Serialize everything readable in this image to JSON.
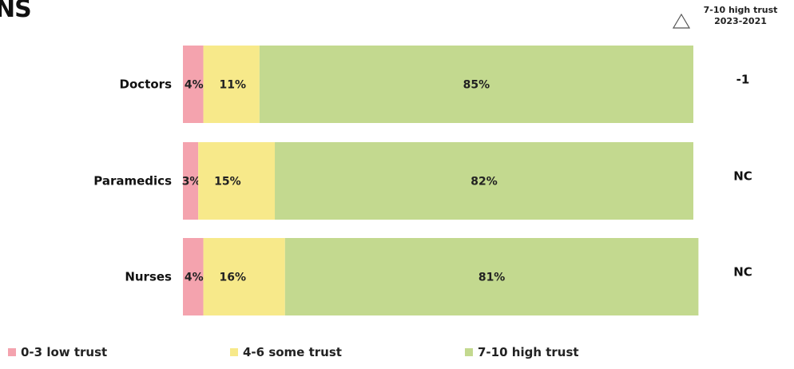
{
  "title_fragment": "NS",
  "delta_header": {
    "line1": "7-10 high trust",
    "line2": "2023-2021",
    "icon": "triangle-outline-icon"
  },
  "colors": {
    "low": "#f4a3ae",
    "some": "#f7e98a",
    "high": "#c3d98f"
  },
  "chart_data": {
    "type": "bar",
    "orientation": "horizontal",
    "stacked": true,
    "categories": [
      "Doctors",
      "Paramedics",
      "Nurses"
    ],
    "series": [
      {
        "name": "0-3 low trust",
        "values": [
          4,
          3,
          4
        ]
      },
      {
        "name": "4-6 some trust",
        "values": [
          11,
          15,
          16
        ]
      },
      {
        "name": "7-10 high trust",
        "values": [
          85,
          82,
          81
        ]
      }
    ],
    "data_labels": [
      [
        "4%",
        "11%",
        "85%"
      ],
      [
        "3%",
        "15%",
        "82%"
      ],
      [
        "4%",
        "16%",
        "81%"
      ]
    ],
    "change_values": [
      "-1",
      "NC",
      "NC"
    ],
    "xlim": [
      0,
      100
    ],
    "legend_position": "bottom",
    "grid": false
  }
}
